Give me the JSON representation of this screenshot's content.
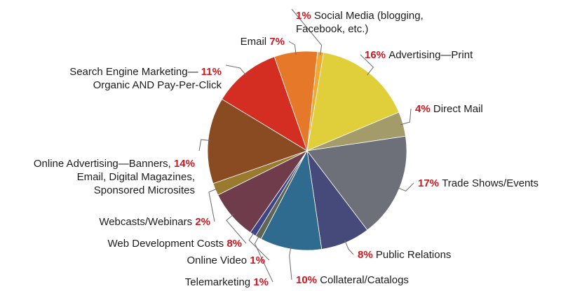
{
  "chart_data": {
    "type": "pie",
    "title": "",
    "accent_color": "#d0161f",
    "slices": [
      {
        "label_lines": [
          "Social Media (blogging,",
          "Facebook, etc.)"
        ],
        "value": 1,
        "value_label": "1%",
        "color": "#f0a830"
      },
      {
        "label_lines": [
          "Advertising—Print"
        ],
        "value": 16,
        "value_label": "16%",
        "color": "#e0cf3a"
      },
      {
        "label_lines": [
          "Direct Mail"
        ],
        "value": 4,
        "value_label": "4%",
        "color": "#a39c6a"
      },
      {
        "label_lines": [
          "Trade Shows/Events"
        ],
        "value": 17,
        "value_label": "17%",
        "color": "#6d6f79"
      },
      {
        "label_lines": [
          "Public Relations"
        ],
        "value": 8,
        "value_label": "8%",
        "color": "#454a7a"
      },
      {
        "label_lines": [
          "Collateral/Catalogs"
        ],
        "value": 10,
        "value_label": "10%",
        "color": "#2e6b8e"
      },
      {
        "label_lines": [
          "Telemarketing"
        ],
        "value": 1,
        "value_label": "1%",
        "color": "#5e6656"
      },
      {
        "label_lines": [
          "Online Video"
        ],
        "value": 1,
        "value_label": "1%",
        "color": "#3e448a"
      },
      {
        "label_lines": [
          "Web Development Costs"
        ],
        "value": 8,
        "value_label": "8%",
        "color": "#6e3c4a"
      },
      {
        "label_lines": [
          "Webcasts/Webinars"
        ],
        "value": 2,
        "value_label": "2%",
        "color": "#9a7a2e"
      },
      {
        "label_lines": [
          "Online Advertising—Banners,",
          "Email, Digital Magazines,",
          "Sponsored Microsites"
        ],
        "value": 14,
        "value_label": "14%",
        "color": "#8a4a22"
      },
      {
        "label_lines": [
          "Search Engine Marketing—",
          "Organic AND Pay-Per-Click"
        ],
        "value": 11,
        "value_label": "11%",
        "color": "#d42d22"
      },
      {
        "label_lines": [
          "Email"
        ],
        "value": 7,
        "value_label": "7%",
        "color": "#e6782a"
      }
    ]
  }
}
